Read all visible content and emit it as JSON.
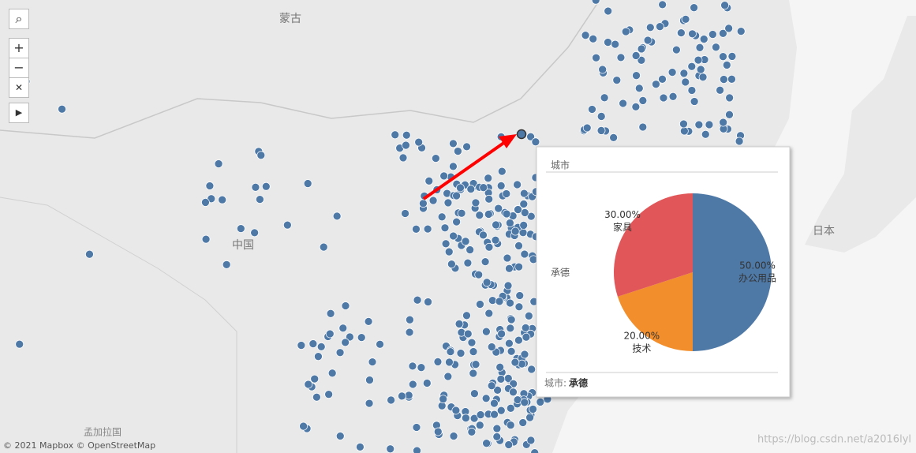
{
  "map": {
    "labels": [
      "蒙古",
      "中国",
      "日本",
      "孟加拉国"
    ],
    "attribution": "© 2021 Mapbox © OpenStreetMap",
    "watermark": "https://blog.csdn.net/a2016lyl"
  },
  "tooltip": {
    "header": "城市",
    "row_label": "承德",
    "footer_label": "城市:",
    "footer_value": "承德"
  },
  "chart_data": {
    "type": "pie",
    "categories": [
      "办公用品",
      "技术",
      "家具"
    ],
    "values": [
      50,
      20,
      30
    ],
    "value_labels": [
      "50.00%",
      "20.00%",
      "30.00%"
    ],
    "colors": [
      "#4e79a7",
      "#f28e2b",
      "#e15759"
    ]
  }
}
